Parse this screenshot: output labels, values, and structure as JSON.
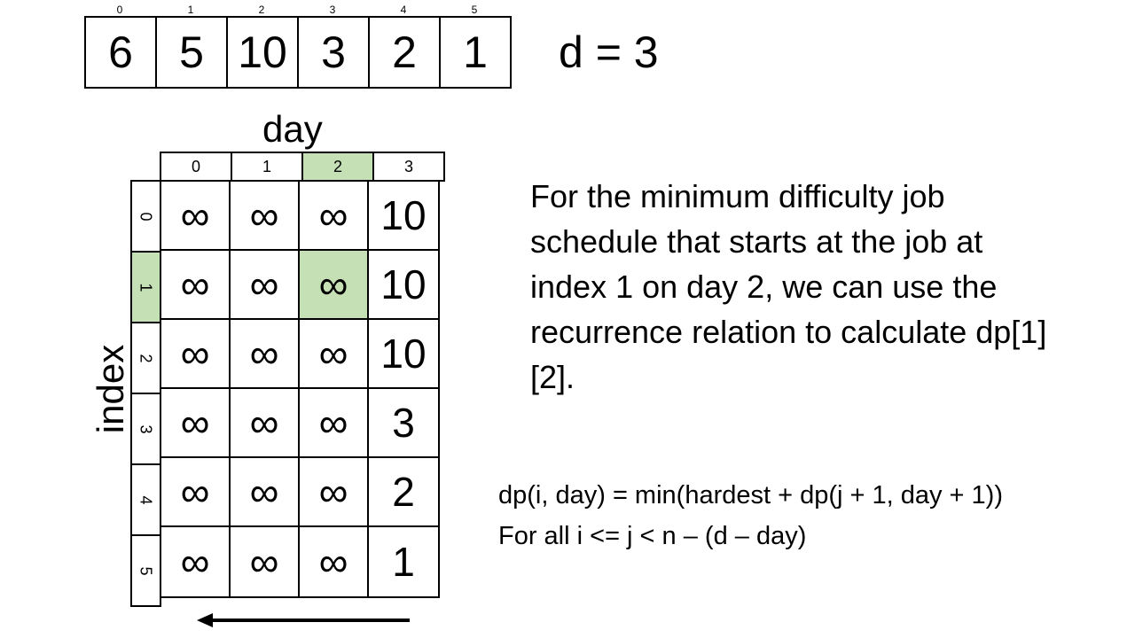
{
  "array": {
    "indices": [
      "0",
      "1",
      "2",
      "3",
      "4",
      "5"
    ],
    "values": [
      "6",
      "5",
      "10",
      "3",
      "2",
      "1"
    ]
  },
  "d_label": "d = 3",
  "table": {
    "col_title": "day",
    "row_title": "index",
    "col_headers": [
      "0",
      "1",
      "2",
      "3"
    ],
    "row_headers": [
      "0",
      "1",
      "2",
      "3",
      "4",
      "5"
    ],
    "cells": [
      [
        "∞",
        "∞",
        "∞",
        "10"
      ],
      [
        "∞",
        "∞",
        "∞",
        "10"
      ],
      [
        "∞",
        "∞",
        "∞",
        "10"
      ],
      [
        "∞",
        "∞",
        "∞",
        "3"
      ],
      [
        "∞",
        "∞",
        "∞",
        "2"
      ],
      [
        "∞",
        "∞",
        "∞",
        "1"
      ]
    ],
    "highlight_color": "#c5e0b4",
    "highlighted": {
      "row": 1,
      "col": 2
    }
  },
  "description": "For the minimum difficulty job schedule that starts at the job at index 1 on day 2, we can use the recurrence relation to calculate dp[1][2].",
  "formula": {
    "line1": "dp(i, day) = min(hardest + dp(j + 1, day + 1))",
    "line2": "For all i <= j < n – (d – day)"
  },
  "arrow_icon": "left-arrow-icon"
}
